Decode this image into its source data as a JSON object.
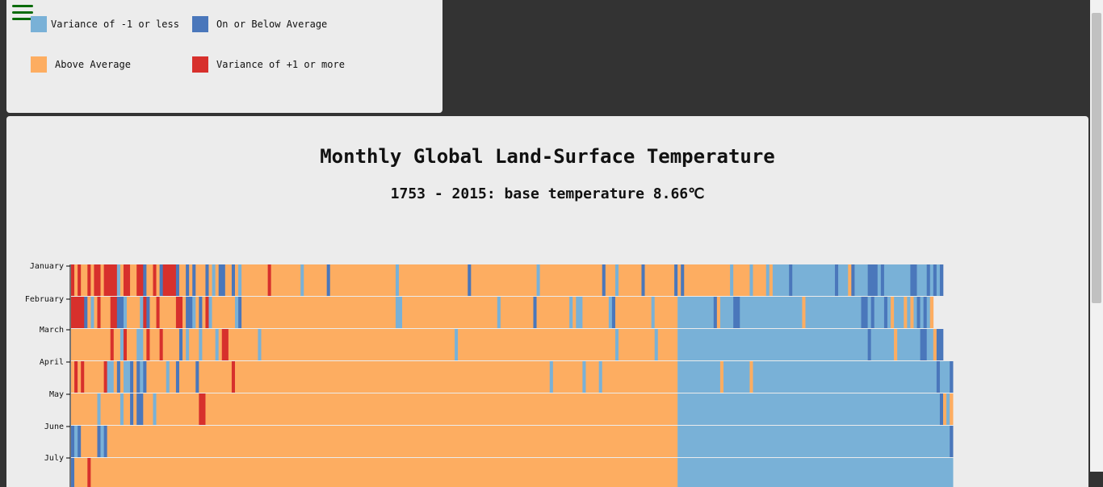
{
  "legend": {
    "items": [
      {
        "label": "Variance of -1 or less",
        "color": "#79b1d7"
      },
      {
        "label": "On or Below Average",
        "color": "#4a77bb"
      },
      {
        "label": "Above Average",
        "color": "#fdad61"
      },
      {
        "label": "Variance of +1 or more",
        "color": "#d7302c"
      }
    ]
  },
  "chart_data": {
    "type": "heatmap",
    "title": "Monthly Global Land-Surface Temperature",
    "subtitle": "1753 - 2015: base temperature 8.66℃",
    "x_range": [
      1753,
      2015
    ],
    "rows": [
      "January",
      "February",
      "March",
      "April",
      "May",
      "June",
      "July"
    ],
    "colors": {
      "0": "#79b1d7",
      "1": "#4a77bb",
      "2": "#fdad61",
      "3": "#d7302c"
    },
    "cells": [
      "32322323323333023322331223213333122121222120211221202222222232222222220222222212222222222222222222202222222222222222222221222222222222222222220222222222222222222212220222222212222222221212222222222222202222202222020000010000000000000100021000011101000000001100010101",
      "33331202322233110222203122322222332110212302222222012222222222222222222222222222222222222222222222200222222222222222222222222222220222222222212222222222020022222222012222222222202222222000000000001200001100000000000000000002000000000000000001101000102000202010102",
      "22222222222232203222002322232222212022202222023322222222202222222222222222222222222222222222222222222222222222222222202222222222222222222222222222222222222222222222220222222222220222222000000000000000000000000000000000000000000000000000000000010000000200000001100211",
      "23232222223002120012101222222022122222122222222223222222222222222222222222222222222222222222222222222222222222222222222222222222222222222222222222022222222202222022222222222222222222222000000000000020000000020000000000000000000000000000000000000000000000000000000010001",
      "22222222022222202212112220222222222222233222222222222222222222222222222222222222222222222222222222222222222222222222222222222222222222222222222222222222222222222222222222222222222222222000000000000000000000000000000000000000000000000000000000000000000000000000000001202",
      "10122222101222222222222222222222222222222222222222222222222222222222222222222222222222222222222222222222222222222222222222222222222222222222222222222222222222222222222222222222222222222000000000000000000000000000000000000000000000000000000000000000000000000000000000001",
      "12222322222222222222222222222222222222222222222222222222222222222222222222222222222222222222222222222222222222222222222222222222222222222222222222222222222222222222222222222222222222222000000000000000000000000000000000000000000000000000000000000000000000000000000000000"
    ]
  }
}
